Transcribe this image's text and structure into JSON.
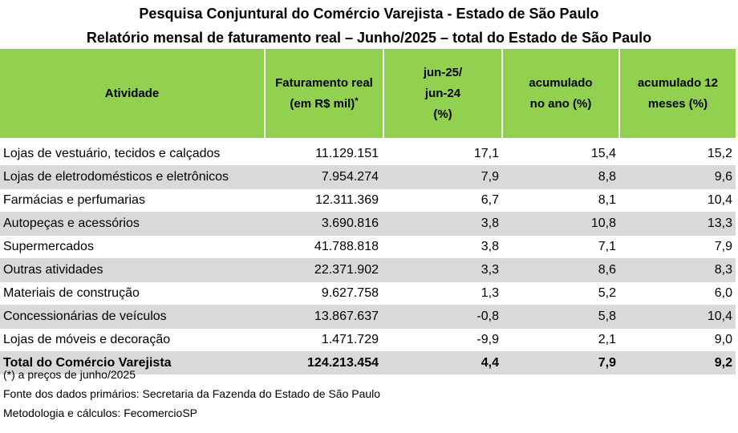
{
  "titles": {
    "line1": "Pesquisa Conjuntural do Comércio Varejista - Estado de São Paulo",
    "line2": "Relatório mensal de faturamento real – Junho/2025 – total do Estado de São Paulo"
  },
  "headers": {
    "atividade": "Atividade",
    "faturamento_1": "Faturamento real",
    "faturamento_2": "(em R$ mil)",
    "faturamento_mark": "*",
    "jun_1": "jun-25/",
    "jun_2": "jun-24",
    "jun_3": "(%)",
    "acum_1": "acumulado",
    "acum_2": "no ano (%)",
    "acum12_1": "acumulado 12",
    "acum12_2": "meses (%)"
  },
  "rows": [
    {
      "atividade": "Lojas de vestuário, tecidos e calçados",
      "faturamento": "11.129.151",
      "jun": "17,1",
      "acumulado_ano": "15,4",
      "acumulado_12m": "15,2"
    },
    {
      "atividade": "Lojas de eletrodomésticos e eletrônicos",
      "faturamento": "7.954.274",
      "jun": "7,9",
      "acumulado_ano": "8,8",
      "acumulado_12m": "9,6"
    },
    {
      "atividade": "Farmácias e perfumarias",
      "faturamento": "12.311.369",
      "jun": "6,7",
      "acumulado_ano": "8,1",
      "acumulado_12m": "10,4"
    },
    {
      "atividade": "Autopeças e acessórios",
      "faturamento": "3.690.816",
      "jun": "3,8",
      "acumulado_ano": "10,8",
      "acumulado_12m": "13,3"
    },
    {
      "atividade": "Supermercados",
      "faturamento": "41.788.818",
      "jun": "3,8",
      "acumulado_ano": "7,1",
      "acumulado_12m": "7,9"
    },
    {
      "atividade": "Outras atividades",
      "faturamento": "22.371.902",
      "jun": "3,3",
      "acumulado_ano": "8,6",
      "acumulado_12m": "8,3"
    },
    {
      "atividade": "Materiais de construção",
      "faturamento": "9.627.758",
      "jun": "1,3",
      "acumulado_ano": "5,2",
      "acumulado_12m": "6,0"
    },
    {
      "atividade": "Concessionárias de veículos",
      "faturamento": "13.867.637",
      "jun": "-0,8",
      "acumulado_ano": "5,8",
      "acumulado_12m": "10,4"
    },
    {
      "atividade": "Lojas de móveis e decoração",
      "faturamento": "1.471.729",
      "jun": "-9,9",
      "acumulado_ano": "2,1",
      "acumulado_12m": "9,0"
    }
  ],
  "total": {
    "atividade": "Total do Comércio Varejista",
    "faturamento": "124.213.454",
    "jun": "4,4",
    "acumulado_ano": "7,9",
    "acumulado_12m": "9,2"
  },
  "footnotes": {
    "note": "(*) a preços de junho/2025",
    "fonte": "Fonte dos dados primários: Secretaria da Fazenda do Estado de São Paulo",
    "metodologia": "Metodologia e cálculos: FecomercioSP"
  }
}
